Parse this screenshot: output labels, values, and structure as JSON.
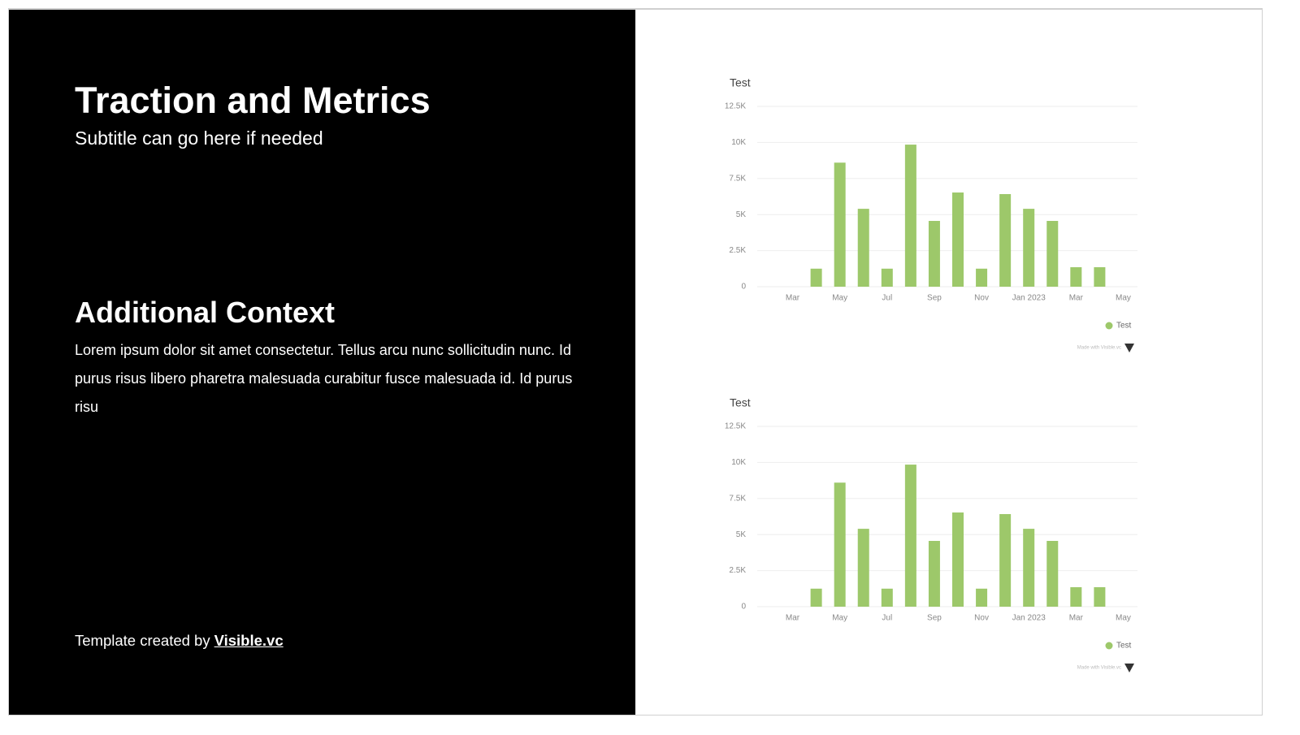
{
  "slide": {
    "title": "Traction and Metrics",
    "subtitle": "Subtitle can go here if needed",
    "section_heading": "Additional Context",
    "body": "Lorem ipsum dolor sit amet consectetur. Tellus arcu nunc sollicitudin nunc. Id purus risus libero pharetra malesuada curabitur fusce malesuada id. Id purus risu",
    "footer": {
      "text": "Template created by",
      "link": "Visible.vc"
    }
  },
  "chart_data": [
    {
      "type": "bar",
      "title": "Test",
      "footnote": "Made with Visible.vc",
      "categories": [
        "Mar",
        null,
        "May",
        null,
        "Jul",
        null,
        "Sep",
        null,
        "Nov",
        null,
        "Jan 2023",
        null,
        "Mar",
        null,
        "May"
      ],
      "series": [
        {
          "name": "Test",
          "color": "#9dc86a",
          "values": [
            null,
            1250,
            8600,
            5400,
            1250,
            9850,
            4560,
            6530,
            1250,
            6420,
            5400,
            4560,
            1350,
            1350,
            null
          ]
        }
      ],
      "ylim": [
        0,
        12500
      ],
      "yticks": [
        0,
        {
          "value": 2500,
          "label": "2.5K"
        },
        {
          "value": 5000,
          "label": "5K"
        },
        {
          "value": 7500,
          "label": "7.5K"
        },
        {
          "value": 10000,
          "label": "10K"
        },
        {
          "value": 12500,
          "label": "12.5K"
        }
      ],
      "grid": true
    },
    {
      "type": "bar",
      "title": "Test",
      "footnote": "Made with Visible.vc",
      "categories": [
        "Mar",
        null,
        "May",
        null,
        "Jul",
        null,
        "Sep",
        null,
        "Nov",
        null,
        "Jan 2023",
        null,
        "Mar",
        null,
        "May"
      ],
      "series": [
        {
          "name": "Test",
          "color": "#9dc86a",
          "values": [
            null,
            1250,
            8600,
            5400,
            1250,
            9850,
            4560,
            6530,
            1250,
            6420,
            5400,
            4560,
            1350,
            1350,
            null
          ]
        }
      ],
      "ylim": [
        0,
        12500
      ],
      "yticks": [
        0,
        {
          "value": 2500,
          "label": "2.5K"
        },
        {
          "value": 5000,
          "label": "5K"
        },
        {
          "value": 7500,
          "label": "7.5K"
        },
        {
          "value": 10000,
          "label": "10K"
        },
        {
          "value": 12500,
          "label": "12.5K"
        }
      ],
      "grid": true
    }
  ]
}
